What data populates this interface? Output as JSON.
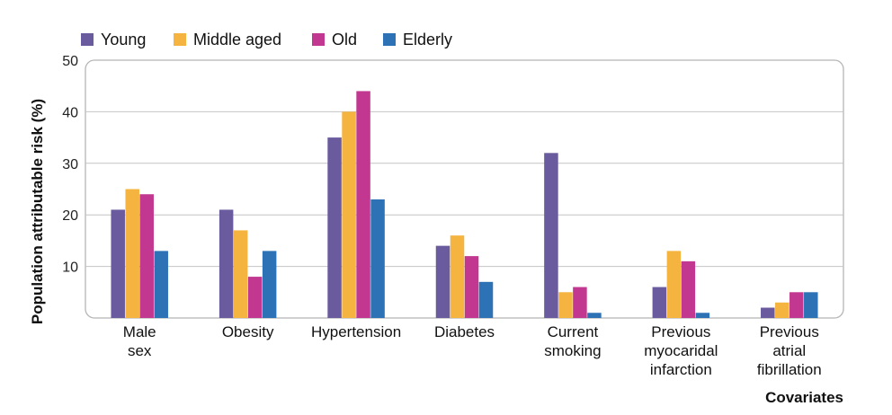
{
  "chart_data": {
    "type": "bar",
    "title": "",
    "xlabel": "Covariates",
    "ylabel": "Population attributable risk (%)",
    "ylim": [
      0,
      50
    ],
    "yticks": [
      10,
      20,
      30,
      40,
      50
    ],
    "grid": true,
    "legend_position": "top-left",
    "categories": [
      [
        "Male",
        "sex"
      ],
      [
        "Obesity"
      ],
      [
        "Hypertension"
      ],
      [
        "Diabetes"
      ],
      [
        "Current",
        "smoking"
      ],
      [
        "Previous",
        "myocaridal",
        "infarction"
      ],
      [
        "Previous",
        "atrial",
        "fibrillation"
      ]
    ],
    "series": [
      {
        "name": "Young",
        "color": "#6a5a9e",
        "values": [
          21,
          21,
          35,
          14,
          32,
          6,
          2
        ]
      },
      {
        "name": "Middle aged",
        "color": "#f5b43f",
        "values": [
          25,
          17,
          40,
          16,
          5,
          13,
          3
        ]
      },
      {
        "name": "Old",
        "color": "#c2378f",
        "values": [
          24,
          8,
          44,
          12,
          6,
          11,
          5
        ]
      },
      {
        "name": "Elderly",
        "color": "#2d72b5",
        "values": [
          13,
          13,
          23,
          7,
          1,
          1,
          5
        ]
      }
    ]
  }
}
